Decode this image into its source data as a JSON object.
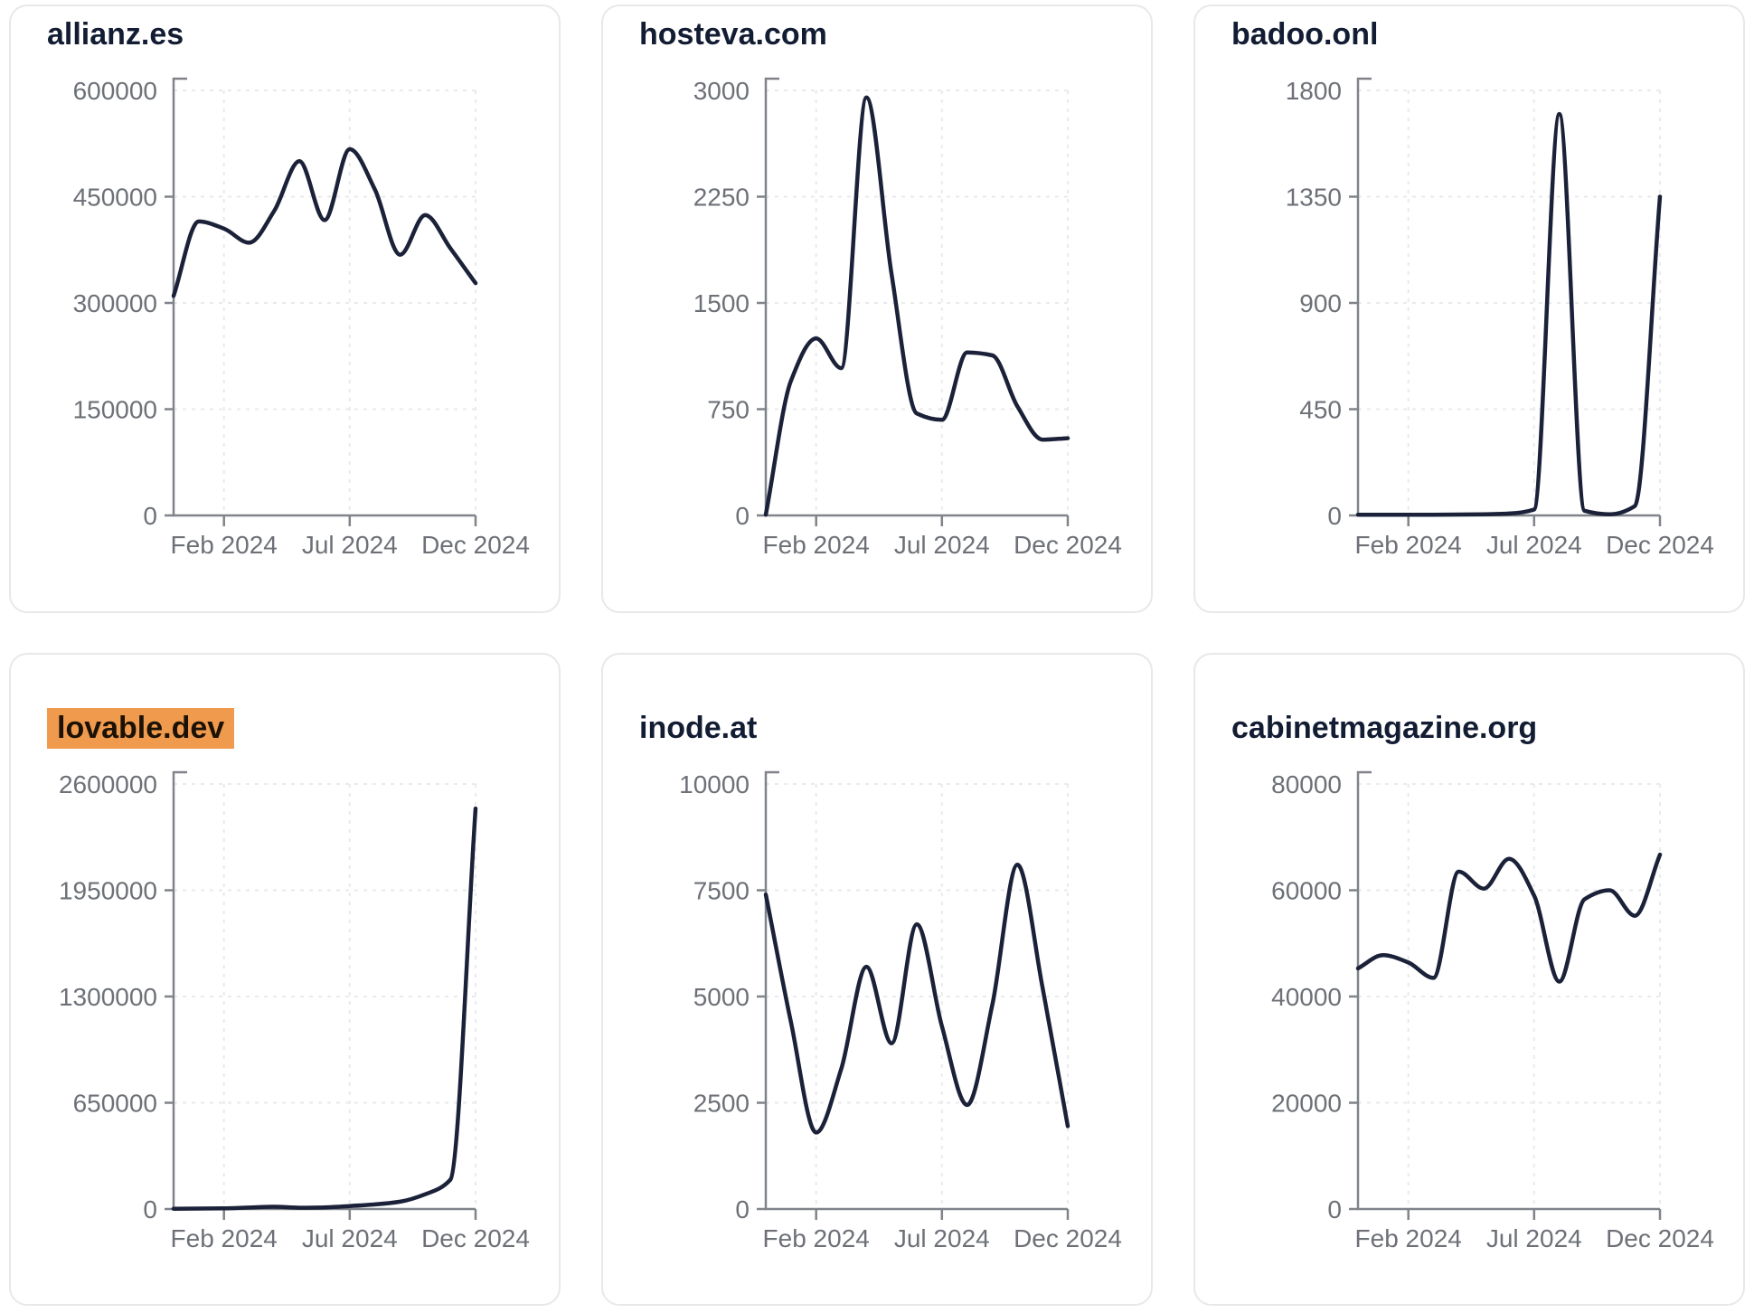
{
  "page": {
    "description": "Grid of six website-traffic sparkline charts, one domain per card",
    "background": "#ffffff"
  },
  "style": {
    "line_color": "#1b2138",
    "axis_color": "#808389",
    "tick_label_color": "#6d7177",
    "grid_color": "#e9eaec",
    "title_color": "#121c33",
    "highlight_bg": "#f09a4e",
    "highlight_text": "#1b1205",
    "card_border": "#e7e8ea",
    "card_bg": "#ffffff"
  },
  "x_axis": {
    "tick_labels": [
      "Feb 2024",
      "Jul 2024",
      "Dec 2024"
    ],
    "tick_month_indices": [
      2,
      7,
      12
    ]
  },
  "chart_data": [
    {
      "type": "line",
      "title": "allianz.es",
      "highlighted": false,
      "ylim": [
        0,
        600000
      ],
      "y_ticks": [
        0,
        150000,
        300000,
        450000,
        600000
      ],
      "x_ticks_shown": [
        "Feb 2024",
        "Jul 2024",
        "Dec 2024"
      ],
      "categories": [
        "Dec 2023",
        "Jan 2024",
        "Feb 2024",
        "Mar 2024",
        "Apr 2024",
        "May 2024",
        "Jun 2024",
        "Jul 2024",
        "Aug 2024",
        "Sep 2024",
        "Oct 2024",
        "Nov 2024",
        "Dec 2024"
      ],
      "values": [
        310000,
        415000,
        405000,
        385000,
        430000,
        500000,
        417000,
        517000,
        460000,
        368000,
        424000,
        377000,
        328000
      ]
    },
    {
      "type": "line",
      "title": "hosteva.com",
      "highlighted": false,
      "ylim": [
        0,
        3000
      ],
      "y_ticks": [
        0,
        750,
        1500,
        2250,
        3000
      ],
      "x_ticks_shown": [
        "Feb 2024",
        "Jul 2024",
        "Dec 2024"
      ],
      "categories": [
        "Dec 2023",
        "Jan 2024",
        "Feb 2024",
        "Mar 2024",
        "Apr 2024",
        "May 2024",
        "Jun 2024",
        "Jul 2024",
        "Aug 2024",
        "Sep 2024",
        "Oct 2024",
        "Nov 2024",
        "Dec 2024"
      ],
      "values": [
        5,
        950,
        1250,
        1040,
        2950,
        1700,
        720,
        675,
        1150,
        1130,
        770,
        535,
        545
      ]
    },
    {
      "type": "line",
      "title": "badoo.onl",
      "highlighted": false,
      "ylim": [
        0,
        1800
      ],
      "y_ticks": [
        0,
        450,
        900,
        1350,
        1800
      ],
      "x_ticks_shown": [
        "Feb 2024",
        "Jul 2024",
        "Dec 2024"
      ],
      "categories": [
        "Dec 2023",
        "Jan 2024",
        "Feb 2024",
        "Mar 2024",
        "Apr 2024",
        "May 2024",
        "Jun 2024",
        "Jul 2024",
        "Aug 2024",
        "Sep 2024",
        "Oct 2024",
        "Nov 2024",
        "Dec 2024"
      ],
      "values": [
        3,
        3,
        3,
        3,
        4,
        5,
        8,
        25,
        1700,
        20,
        5,
        40,
        1350
      ]
    },
    {
      "type": "line",
      "title": "lovable.dev",
      "highlighted": true,
      "ylim": [
        0,
        2600000
      ],
      "y_ticks": [
        0,
        650000,
        1300000,
        1950000,
        2600000
      ],
      "x_ticks_shown": [
        "Feb 2024",
        "Jul 2024",
        "Dec 2024"
      ],
      "categories": [
        "Dec 2023",
        "Jan 2024",
        "Feb 2024",
        "Mar 2024",
        "Apr 2024",
        "May 2024",
        "Jun 2024",
        "Jul 2024",
        "Aug 2024",
        "Sep 2024",
        "Oct 2024",
        "Nov 2024",
        "Dec 2024"
      ],
      "values": [
        1500,
        2500,
        4000,
        9000,
        14000,
        8000,
        10000,
        18000,
        28000,
        45000,
        90000,
        180000,
        2450000
      ]
    },
    {
      "type": "line",
      "title": "inode.at",
      "highlighted": false,
      "ylim": [
        0,
        10000
      ],
      "y_ticks": [
        0,
        2500,
        5000,
        7500,
        10000
      ],
      "x_ticks_shown": [
        "Feb 2024",
        "Jul 2024",
        "Dec 2024"
      ],
      "categories": [
        "Dec 2023",
        "Jan 2024",
        "Feb 2024",
        "Mar 2024",
        "Apr 2024",
        "May 2024",
        "Jun 2024",
        "Jul 2024",
        "Aug 2024",
        "Sep 2024",
        "Oct 2024",
        "Nov 2024",
        "Dec 2024"
      ],
      "values": [
        7400,
        4400,
        1800,
        3300,
        5700,
        3900,
        6700,
        4300,
        2450,
        4800,
        8100,
        5200,
        1950
      ]
    },
    {
      "type": "line",
      "title": "cabinetmagazine.org",
      "highlighted": false,
      "ylim": [
        0,
        80000
      ],
      "y_ticks": [
        0,
        20000,
        40000,
        60000,
        80000
      ],
      "x_ticks_shown": [
        "Feb 2024",
        "Jul 2024",
        "Dec 2024"
      ],
      "categories": [
        "Dec 2023",
        "Jan 2024",
        "Feb 2024",
        "Mar 2024",
        "Apr 2024",
        "May 2024",
        "Jun 2024",
        "Jul 2024",
        "Aug 2024",
        "Sep 2024",
        "Oct 2024",
        "Nov 2024",
        "Dec 2024"
      ],
      "values": [
        45300,
        47800,
        46400,
        43500,
        63500,
        60300,
        65900,
        59000,
        42800,
        58300,
        60000,
        55200,
        66700
      ]
    }
  ]
}
